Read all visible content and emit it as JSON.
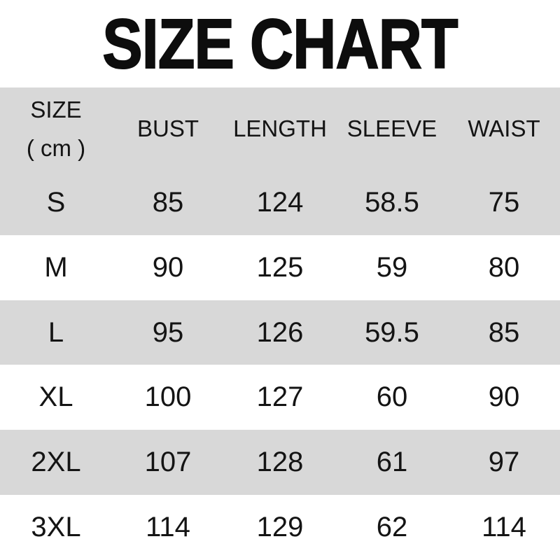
{
  "page": {
    "title": "SIZE CHART"
  },
  "colors": {
    "background": "#ffffff",
    "stripe_gray": "#d8d8d8",
    "text": "#141414",
    "title": "#0d0d0d"
  },
  "table": {
    "header": {
      "size_line1": "SIZE",
      "size_line2": "( cm )",
      "columns": [
        "BUST",
        "LENGTH",
        "SLEEVE",
        "WAIST"
      ]
    },
    "rows": [
      {
        "size": "S",
        "bust": "85",
        "length": "124",
        "sleeve": "58.5",
        "waist": "75"
      },
      {
        "size": "M",
        "bust": "90",
        "length": "125",
        "sleeve": "59",
        "waist": "80"
      },
      {
        "size": "L",
        "bust": "95",
        "length": "126",
        "sleeve": "59.5",
        "waist": "85"
      },
      {
        "size": "XL",
        "bust": "100",
        "length": "127",
        "sleeve": "60",
        "waist": "90"
      },
      {
        "size": "2XL",
        "bust": "107",
        "length": "128",
        "sleeve": "61",
        "waist": "97"
      },
      {
        "size": "3XL",
        "bust": "114",
        "length": "129",
        "sleeve": "62",
        "waist": "114"
      }
    ]
  },
  "chart_data": {
    "type": "table",
    "title": "SIZE CHART",
    "unit": "cm",
    "columns": [
      "SIZE ( cm )",
      "BUST",
      "LENGTH",
      "SLEEVE",
      "WAIST"
    ],
    "rows": [
      [
        "S",
        85,
        124,
        58.5,
        75
      ],
      [
        "M",
        90,
        125,
        59,
        80
      ],
      [
        "L",
        95,
        126,
        59.5,
        85
      ],
      [
        "XL",
        100,
        127,
        60,
        90
      ],
      [
        "2XL",
        107,
        128,
        61,
        97
      ],
      [
        "3XL",
        114,
        129,
        62,
        114
      ]
    ],
    "layout": {
      "striped": true,
      "stripe_color": "#d8d8d8",
      "header_background": "#d8d8d8"
    }
  }
}
